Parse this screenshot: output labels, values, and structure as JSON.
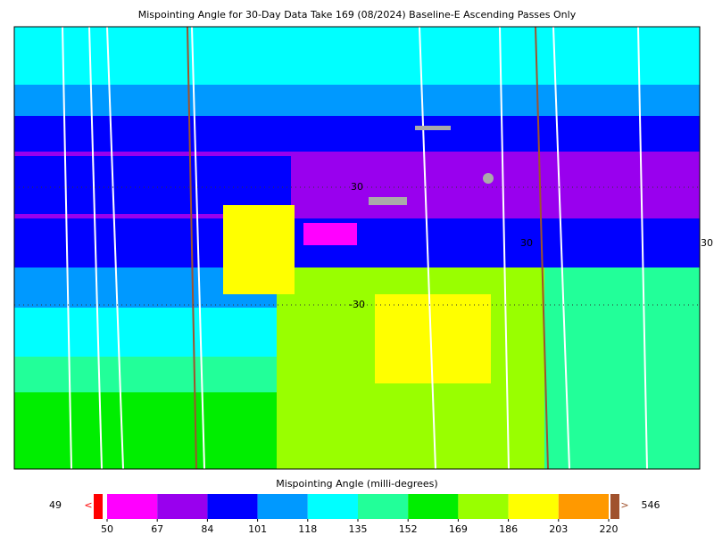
{
  "header": {
    "title": "Mispointing Angle for 30-Day Data Take 169 (08/2024) Baseline-E Ascending Passes Only"
  },
  "map": {
    "grid_labels": [
      "30",
      "-30",
      "30",
      "30"
    ]
  },
  "colorbar": {
    "label": "Mispointing Angle (milli-degrees)",
    "ticks": [
      50,
      67,
      84,
      101,
      118,
      135,
      152,
      169,
      186,
      203,
      220
    ],
    "colors": [
      "#ff00ff",
      "#9900ee",
      "#0000ff",
      "#0099ff",
      "#00ffff",
      "#22ff99",
      "#00ee00",
      "#99ff00",
      "#ffff00",
      "#ff9900"
    ],
    "under": {
      "value": "49",
      "arrow": "<",
      "color": "#ff0000"
    },
    "over": {
      "value": "546",
      "arrow": ">",
      "color": "#a0522d"
    }
  }
}
